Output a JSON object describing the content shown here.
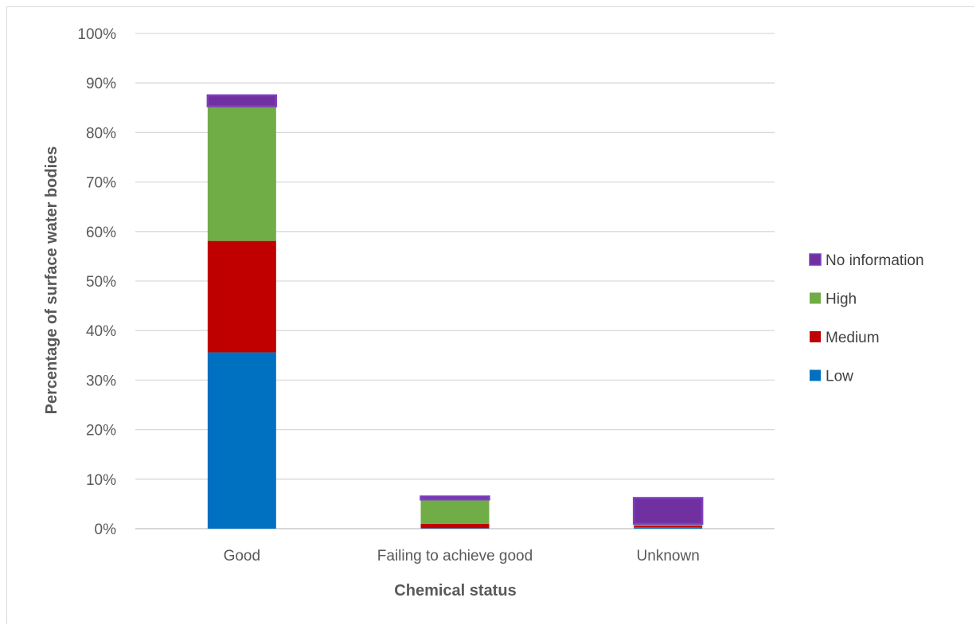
{
  "chart_data": {
    "type": "bar",
    "stacked": true,
    "title": "",
    "xlabel": "Chemical status",
    "ylabel": "Percentage of surface water bodies",
    "ylim": [
      0,
      100
    ],
    "y_ticks": [
      "0%",
      "10%",
      "20%",
      "30%",
      "40%",
      "50%",
      "60%",
      "70%",
      "80%",
      "90%",
      "100%"
    ],
    "grid": true,
    "legend_position": "right",
    "categories": [
      "Good",
      "Failing to achieve good",
      "Unknown"
    ],
    "series": [
      {
        "name": "Low",
        "color": "#0070c0",
        "values": [
          35.6,
          0.1,
          0.3
        ]
      },
      {
        "name": "Medium",
        "color": "#c00000",
        "values": [
          22.5,
          0.9,
          0.3
        ]
      },
      {
        "name": "High",
        "color": "#70ad47",
        "values": [
          27.2,
          4.9,
          0.4
        ]
      },
      {
        "name": "No information",
        "color": "#7030a0",
        "border": "#7f3fbf",
        "values": [
          2.2,
          0.6,
          5.2
        ]
      }
    ],
    "legend_order": [
      "No information",
      "High",
      "Medium",
      "Low"
    ]
  }
}
